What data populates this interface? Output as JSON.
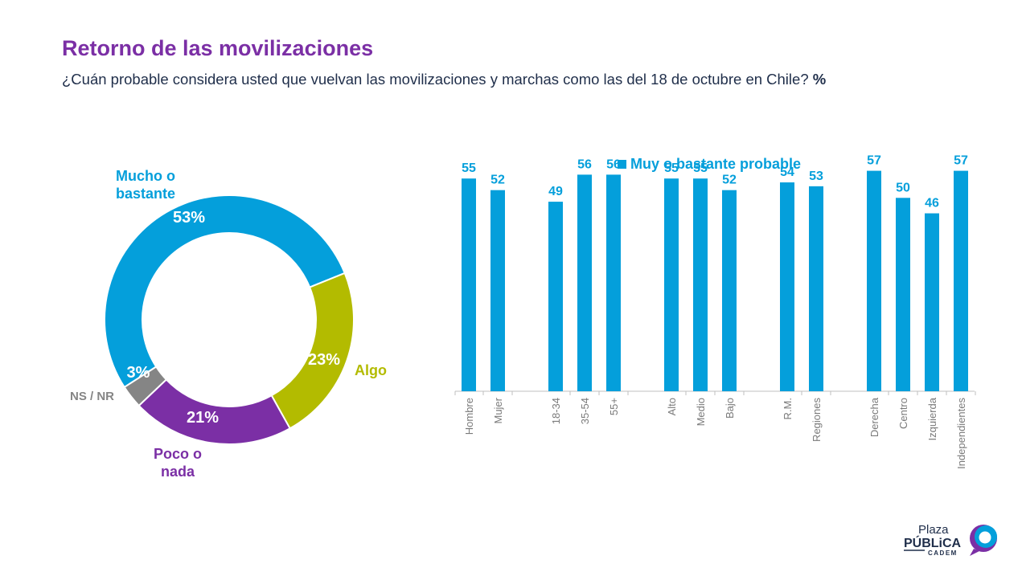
{
  "page": {
    "title": "Retorno de las movilizaciones",
    "subtitle": "¿Cuán probable considera usted que vuelvan las movilizaciones y marchas como las del 18 de octubre en Chile?",
    "subtitle_unit": "%"
  },
  "colors": {
    "title": "#7b2fa5",
    "subtitle": "#1f2e4a",
    "blue": "#049fdb",
    "green": "#b3bb00",
    "purple": "#7b2fa5",
    "gray": "#858585",
    "axis_label": "#7a7a7a"
  },
  "chart_data": [
    {
      "type": "pie",
      "donut": true,
      "slices": [
        {
          "label": "Mucho o bastante",
          "label_lines": [
            "Mucho o",
            "bastante"
          ],
          "value": 53,
          "display": "53%",
          "color": "#049fdb"
        },
        {
          "label": "Algo",
          "label_lines": [
            "Algo"
          ],
          "value": 23,
          "display": "23%",
          "color": "#b3bb00"
        },
        {
          "label": "Poco o nada",
          "label_lines": [
            "Poco o",
            "nada"
          ],
          "value": 21,
          "display": "21%",
          "color": "#7b2fa5"
        },
        {
          "label": "NS / NR",
          "label_lines": [
            "NS / NR"
          ],
          "value": 3,
          "display": "3%",
          "color": "#858585"
        }
      ]
    },
    {
      "type": "bar",
      "legend": "Muy o bastante probable",
      "legend_position": "top-center",
      "color": "#049fdb",
      "grid": false,
      "ylim": [
        0,
        70
      ],
      "groups": [
        {
          "categories": [
            "Hombre",
            "Mujer"
          ],
          "values": [
            55,
            52
          ]
        },
        {
          "categories": [
            "18-34",
            "35-54",
            "55+"
          ],
          "values": [
            49,
            56,
            56
          ]
        },
        {
          "categories": [
            "Alto",
            "Medio",
            "Bajo"
          ],
          "values": [
            55,
            55,
            52
          ]
        },
        {
          "categories": [
            "R.M.",
            "Regiones"
          ],
          "values": [
            54,
            53
          ]
        },
        {
          "categories": [
            "Derecha",
            "Centro",
            "Izquierda",
            "Independientes"
          ],
          "values": [
            57,
            50,
            46,
            57
          ]
        }
      ]
    }
  ],
  "logo": {
    "line1": "Plaza",
    "line2": "PÚBLiCA",
    "line3": "CADEM"
  }
}
